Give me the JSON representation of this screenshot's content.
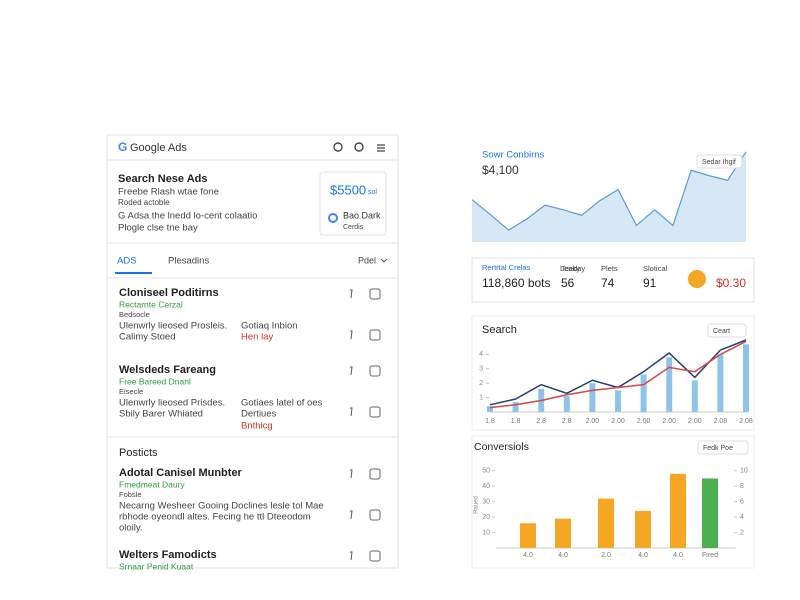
{
  "header": {
    "logo": "G",
    "title": "Google Ads"
  },
  "ad_card": {
    "title": "Search Nese Ads",
    "lines": [
      "Freebe Rlash wtae fone",
      "Roded actoble",
      "G Adsa the lnedd lo-cent colaatio",
      "Plogle clse tne bay"
    ],
    "price": "$5500",
    "price_unit": "sol",
    "brand": "Bao Dark",
    "brand_sub": "Cerdis"
  },
  "tabs": {
    "items": [
      "ADS",
      "Plesadins"
    ],
    "filter": "Pdel"
  },
  "listings": [
    {
      "title": "Cloniseel Poditirns",
      "tag": "Rectarnte Cerzal",
      "sub": "Bedsocle",
      "lines": [
        "Ulenwrly lieosed Prosleis.",
        "Calimy Stoed"
      ],
      "notes": [
        "Gotiaq Inbion"
      ],
      "alert": "Hen lay"
    },
    {
      "title": "Welsdeds Fareang",
      "tag": "Free Bareed Dnanl",
      "sub": "Eisecle",
      "lines": [
        "Ulenwrly lieosed Prisdes.",
        "Sbily Barer Whiated"
      ],
      "notes": [
        "Gotiaes latel of oes",
        "Dertiues"
      ],
      "alert": "Bnthicg"
    }
  ],
  "section": "Posticts",
  "products": [
    {
      "title": "Adotal Canisel Munbter",
      "tag": "Fmedmeat Daury",
      "sub": "Fobsle",
      "lines": [
        "Necarng Wesheer Gooing Doclines lesle tol Mae",
        "rbhode oyeondl altes. Fecing he ttl Dteeodom",
        "oloily."
      ]
    },
    {
      "title": "Welters Famodicts",
      "tag": "Srnaar Penid Kuaat"
    }
  ],
  "stats": {
    "caption": "Rertrtal Crelas",
    "items": [
      {
        "label": "Leaky",
        "value": "118,860 bots"
      },
      {
        "label": "Teeday",
        "value": "56"
      },
      {
        "label": "Plets",
        "value": "74"
      },
      {
        "label": "Slotical",
        "value": "91"
      },
      {
        "label": "",
        "value": "$0.30"
      }
    ]
  },
  "chart_data": [
    {
      "type": "area",
      "title": "Sowr Conbirns",
      "subtitle": "$4,100",
      "badge": "Sedar Ihgif",
      "color": "#5b9bd5",
      "values": [
        46,
        30,
        13,
        25,
        40,
        35,
        29,
        45,
        57,
        18,
        35,
        18,
        78,
        72,
        67,
        98
      ],
      "ylim": [
        0,
        100
      ]
    },
    {
      "type": "line",
      "title": "Search",
      "badge": "Ceart",
      "categories": [
        "1.8",
        "1.8",
        "2.8",
        "2.8",
        "2.00",
        "2.00",
        "2.00",
        "2.00",
        "2.00",
        "2.08",
        "2.08"
      ],
      "series": [
        {
          "style": "bar",
          "color": "#8ec3ea",
          "values": [
            0.4,
            0.7,
            1.6,
            1.1,
            2.0,
            1.5,
            2.6,
            3.8,
            2.2,
            4.0,
            4.7
          ]
        },
        {
          "style": "line",
          "color": "#1f3d7a",
          "values": [
            0.5,
            0.9,
            1.9,
            1.3,
            2.2,
            1.7,
            2.8,
            4.1,
            2.4,
            4.3,
            5.0
          ]
        },
        {
          "style": "line",
          "color": "#d9473f",
          "values": [
            0.3,
            0.5,
            0.8,
            1.2,
            1.5,
            1.7,
            1.9,
            3.1,
            2.8,
            4.0,
            4.9
          ]
        }
      ],
      "ylim": [
        0,
        5
      ],
      "yticks": [
        1,
        2,
        3,
        4
      ]
    },
    {
      "type": "bar",
      "title": "Conversiols",
      "badge": "Fedk Poe",
      "ylabel": "Raued",
      "categories": [
        "4.0",
        "4.0",
        "2.0",
        "4.0",
        "4.0",
        "Fired"
      ],
      "values": [
        16,
        19,
        32,
        24,
        48,
        45
      ],
      "colors": [
        "#f5a623",
        "#f5a623",
        "#f5a623",
        "#f5a623",
        "#f5a623",
        "#4caf50"
      ],
      "ylim": [
        0,
        55
      ],
      "yticks": [
        10,
        20,
        30,
        40,
        50
      ],
      "y2lim": [
        0,
        11
      ],
      "y2ticks": [
        2,
        4,
        6,
        8,
        10
      ]
    }
  ]
}
